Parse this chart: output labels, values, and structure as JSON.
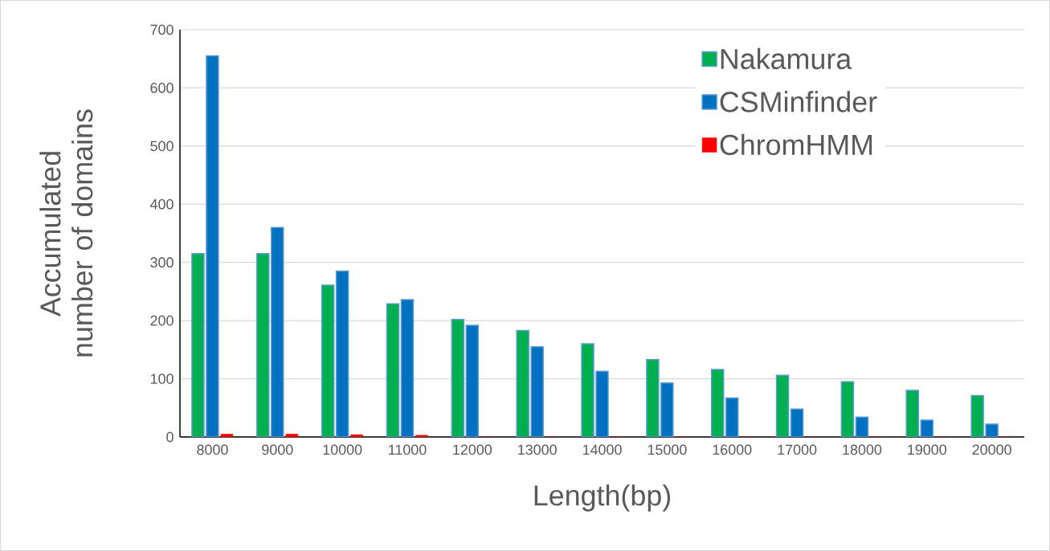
{
  "chart_data": {
    "type": "bar",
    "categories": [
      "8000",
      "9000",
      "10000",
      "11000",
      "12000",
      "13000",
      "14000",
      "15000",
      "16000",
      "17000",
      "18000",
      "19000",
      "20000"
    ],
    "series": [
      {
        "name": "Nakamura",
        "color": "#00b050",
        "values": [
          315,
          315,
          261,
          229,
          202,
          183,
          160,
          133,
          116,
          106,
          95,
          80,
          71
        ]
      },
      {
        "name": "CSMinfinder",
        "color": "#0070c0",
        "values": [
          655,
          360,
          285,
          236,
          192,
          155,
          113,
          93,
          67,
          48,
          34,
          29,
          22
        ]
      },
      {
        "name": "ChromHMM",
        "color": "#ff0000",
        "values": [
          5,
          5,
          4,
          3,
          0,
          0,
          0,
          0,
          0,
          0,
          0,
          0,
          0
        ]
      }
    ],
    "xlabel": "Length(bp)",
    "ylabel": "Accumulated number of domains",
    "ylim": [
      0,
      700
    ],
    "yticks": [
      0,
      100,
      200,
      300,
      400,
      500,
      600,
      700
    ],
    "grid": "y",
    "legend": "top right"
  }
}
